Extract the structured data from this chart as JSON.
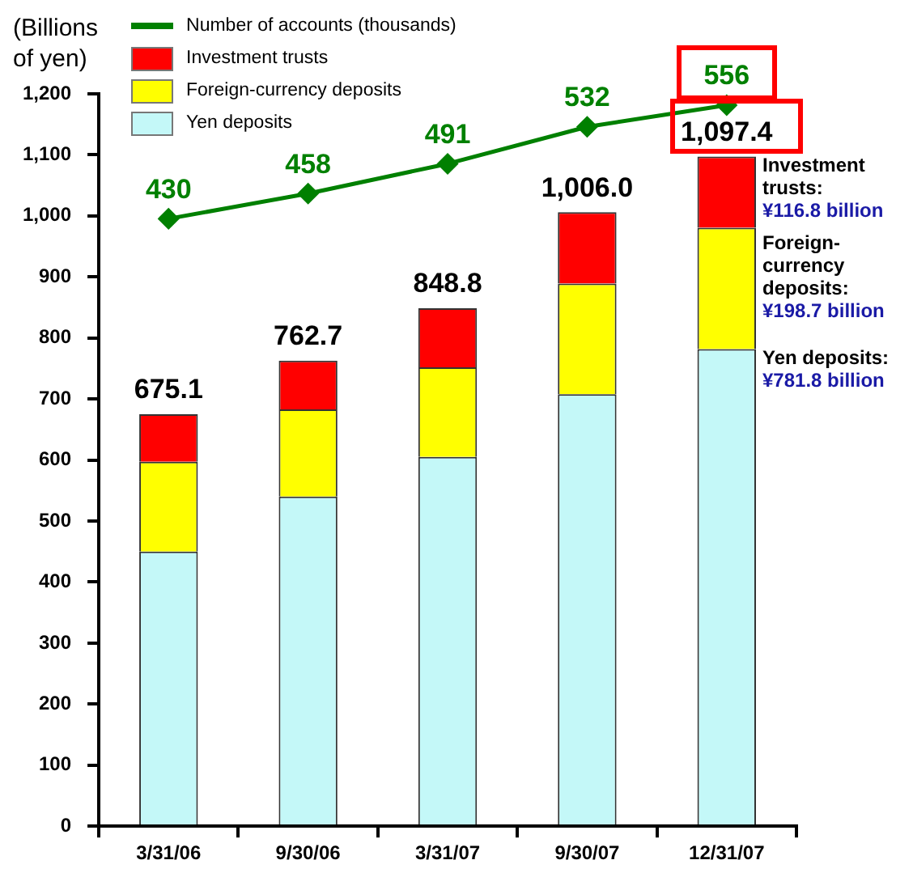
{
  "chart_data": {
    "type": "bar",
    "stacked": true,
    "ylabel": "(Billions of yen)",
    "categories": [
      "3/31/06",
      "9/30/06",
      "3/31/07",
      "9/30/07",
      "12/31/07"
    ],
    "series": [
      {
        "name": "Yen deposits",
        "color": "#c4f8f8",
        "values": [
          450,
          540,
          605,
          708,
          781.8
        ]
      },
      {
        "name": "Foreign-currency deposits",
        "color": "#ffff00",
        "values": [
          147,
          143,
          147,
          181,
          198.7
        ]
      },
      {
        "name": "Investment trusts",
        "color": "#ff0000",
        "values": [
          78.1,
          79.7,
          96.8,
          117,
          116.8
        ]
      },
      {
        "name": "Number of accounts (thousands)",
        "type": "line",
        "axis": "y2",
        "color": "#008000",
        "marker": "diamond",
        "values": [
          430,
          458,
          491,
          532,
          556
        ],
        "value_labels": [
          "430",
          "458",
          "491",
          "532",
          "556"
        ]
      }
    ],
    "totals": [
      "675.1",
      "762.7",
      "848.8",
      "1,006.0",
      "1,097.4"
    ],
    "ylim": [
      0,
      1200
    ],
    "yticks": [
      0,
      100,
      200,
      300,
      400,
      500,
      600,
      700,
      800,
      900,
      {
        "value": 1000,
        "label": "1,000"
      },
      {
        "value": 1100,
        "label": "1,100"
      },
      {
        "value": 1200,
        "label": "1,200"
      }
    ],
    "tick_labels": "xy",
    "grid": false,
    "legend": "top left",
    "annotations": [
      "Investment\ntrusts:\n¥116.8 billion",
      "Foreign-\ncurrency\ndeposits:\n¥198.7 billion",
      "Yen deposits:\n¥781.8 billion"
    ]
  }
}
